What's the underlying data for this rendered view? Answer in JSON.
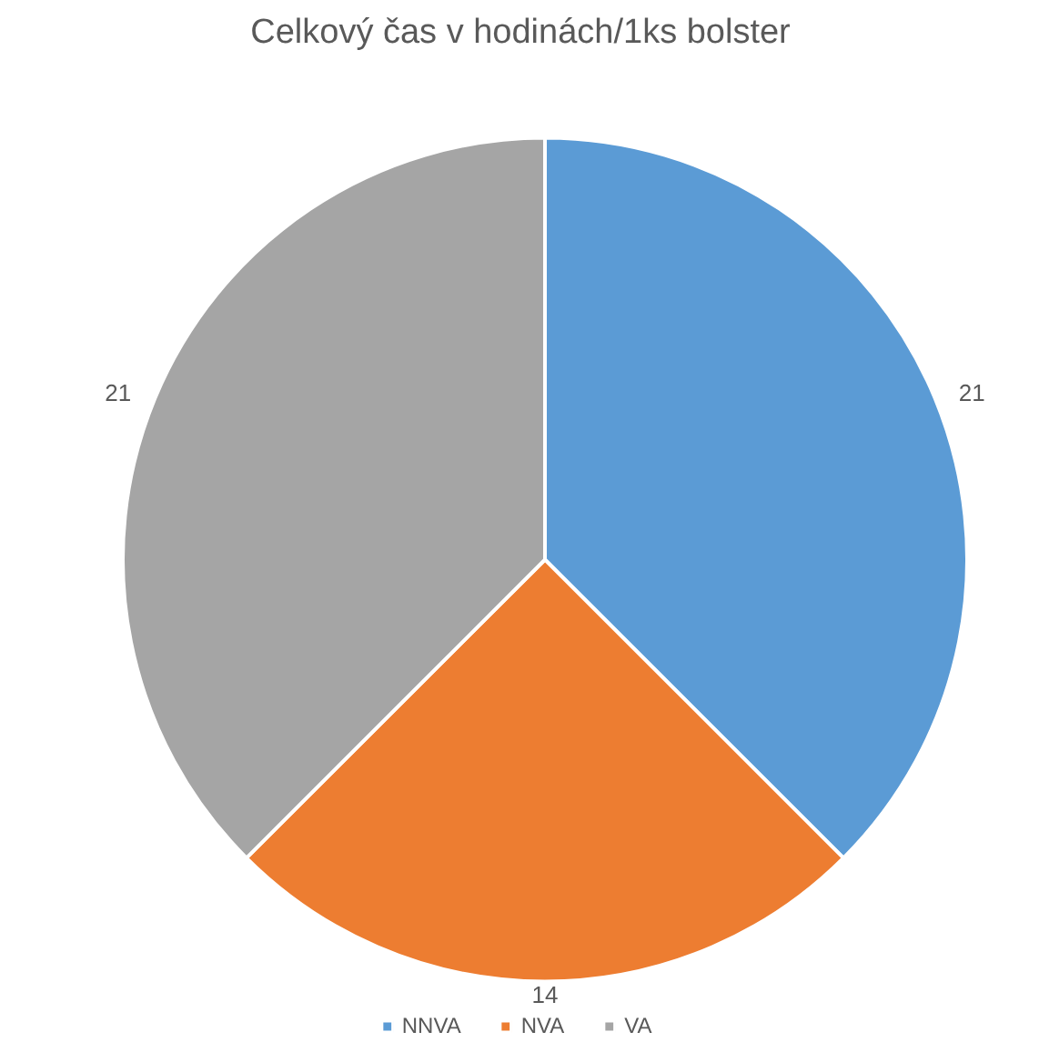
{
  "chart_data": {
    "type": "pie",
    "title": "Celkový čas v hodinách/1ks bolster",
    "categories": [
      "NNVA",
      "NVA",
      "VA"
    ],
    "values": [
      21,
      14,
      21
    ],
    "colors": [
      "#5b9bd5",
      "#ed7d31",
      "#a5a5a5"
    ],
    "data_labels": true,
    "legend": "bottom"
  }
}
